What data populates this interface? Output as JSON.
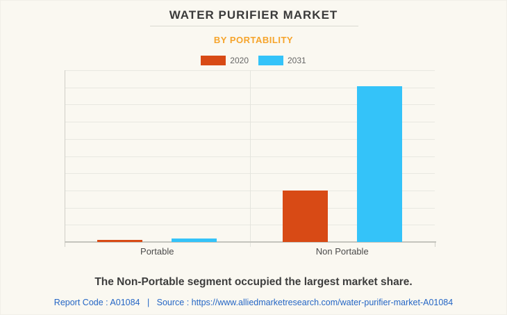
{
  "header": {
    "title": "WATER PURIFIER MARKET",
    "subtitle": "BY PORTABILITY"
  },
  "chart_data": {
    "type": "bar",
    "title": "WATER PURIFIER MARKET",
    "subtitle": "BY PORTABILITY",
    "categories": [
      "Portable",
      "Non Portable"
    ],
    "series": [
      {
        "name": "2020",
        "color": "#d84a15",
        "values": [
          1.2,
          30
        ]
      },
      {
        "name": "2031",
        "color": "#34c3f9",
        "values": [
          2,
          90.5
        ]
      }
    ],
    "xlabel": "",
    "ylabel": "",
    "ylim": [
      0,
      100
    ],
    "y_axis_labels_visible": false,
    "gridline_count": 10,
    "grid": "horizontal",
    "legend_position": "top"
  },
  "footer": {
    "note": "The Non-Portable segment occupied the largest market share.",
    "report_code": "Report Code : A01084",
    "separator": "|",
    "source_label": "Source :",
    "source_url": "https://www.alliedmarketresearch.com/water-purifier-market-A01084"
  },
  "colors": {
    "background": "#faf8f1",
    "title_text": "#3a3a3a",
    "subtitle_text": "#f6a42b",
    "series_2020": "#d84a15",
    "series_2031": "#34c3f9",
    "gridline": "#e8e8e1",
    "axis_line": "#c4c4bd",
    "category_label": "#4a4a4a",
    "legend_label": "#666666",
    "footer_note_text": "#3d3d3d",
    "link_blue": "#2566c5"
  }
}
